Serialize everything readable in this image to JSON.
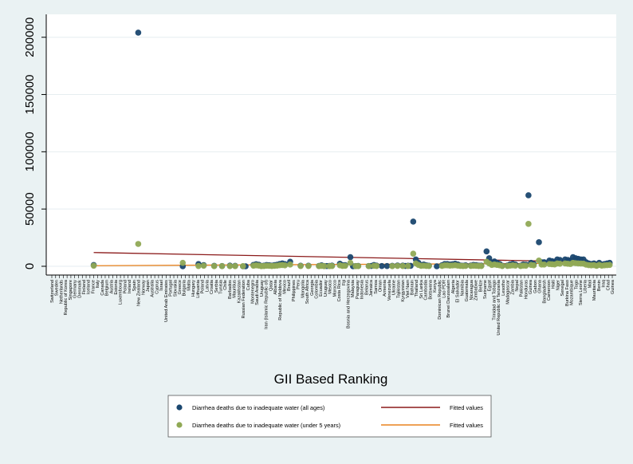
{
  "chart_data": {
    "type": "scatter",
    "title": "",
    "xlabel": "GII Based Ranking",
    "ylabel": "",
    "ylim": [
      0,
      220000
    ],
    "yticks": [
      0,
      50000,
      100000,
      150000,
      200000
    ],
    "ytick_labels": [
      "0",
      "50000",
      "100000",
      "150000",
      "200000"
    ],
    "grid": "horizontal",
    "legend_position": "bottom",
    "n_positions": 148,
    "countries": [
      "Switzerland",
      "Sweden",
      "Netherlands",
      "Republic of Korea",
      "Singapore",
      "Germany",
      "Denmark",
      "Finland",
      "Iceland",
      "France",
      "Italy",
      "Canada",
      "Belgium",
      "Austria",
      "Estonia",
      "Luxembourg",
      "Poland",
      "Ireland",
      "Spain",
      "New Zealand",
      "Norway",
      "Japan",
      "Australia",
      "Cyprus",
      "Israel",
      "United Arab Emirates",
      "Portugal",
      "Slovakia",
      "Greece",
      "Bulgaria",
      "Malta",
      "Hungary",
      "Lithuania",
      "Poland",
      "Latvia",
      "Croatia",
      "Serbia",
      "Tunisia",
      "Chile",
      "Barbados",
      "Mauritius",
      "Kazakhstan",
      "Russian Federation",
      "Cuba",
      "Montenegro",
      "Saudi Arabia",
      "Uruguay",
      "Iran (Islamic Republic of)",
      "Qatar",
      "Albania",
      "Republic of Moldova",
      "Mexico",
      "Brazil",
      "Philippines",
      "Peru",
      "Mongolia",
      "South Africa",
      "Georgia",
      "Colombia",
      "Ecuador",
      "Uruguay",
      "Mexico",
      "Morocco",
      "Costa Rica",
      "Fiji",
      "Bosnia and Herzegovina",
      "Malaysia",
      "Paraguay",
      "Indonesia",
      "Belarus",
      "Jamaica",
      "Samoa",
      "Oman",
      "Armenia",
      "Venezuela",
      "Ukraine",
      "Tajikistan",
      "Kyrgyzstan",
      "Viet Nam",
      "Bahrain",
      "Thailand",
      "Sri Lanka",
      "Cambodia",
      "Botswana",
      "Kenya",
      "Dominican Republic",
      "Lao PDR",
      "Brunei Darussalam",
      "Algeria",
      "El Salvador",
      "Namibia",
      "Guatemala",
      "Nicaragua",
      "Zimbabwe",
      "Belize",
      "Suriname",
      "Egypt",
      "Trinidad and Tobago",
      "United Republic of Tanzania",
      "Lesotho",
      "Madagascar",
      "Zambia",
      "Nepal",
      "Pakistan",
      "Honduras",
      "Guinea",
      "Gabon",
      "Ghana",
      "Bangladesh",
      "Cameroon",
      "Haiti",
      "Niger",
      "Senegal",
      "Burkina Faso",
      "Mozambique",
      "Togo",
      "Sierra Leone",
      "Liberia",
      "Mali",
      "Mauritania",
      "Benin",
      "Iraq",
      "Chad",
      "Guinea"
    ],
    "series": [
      {
        "name": "Diarrhea deaths due to inadequate water (all ages)",
        "color": "#1a476f",
        "points": [
          [
            17,
            1100
          ],
          [
            51,
            0
          ],
          [
            57,
            2000
          ],
          [
            59,
            1000
          ],
          [
            63,
            400
          ],
          [
            66,
            200
          ],
          [
            69,
            600
          ],
          [
            71,
            400
          ],
          [
            74,
            0
          ],
          [
            75,
            0
          ],
          [
            78,
            1200
          ],
          [
            79,
            1800
          ],
          [
            80,
            1400
          ],
          [
            81,
            300
          ],
          [
            82,
            600
          ],
          [
            83,
            1100
          ],
          [
            84,
            900
          ],
          [
            85,
            600
          ],
          [
            86,
            1000
          ],
          [
            87,
            1400
          ],
          [
            88,
            2000
          ],
          [
            89,
            2500
          ],
          [
            90,
            1900
          ],
          [
            92,
            4000
          ],
          [
            96,
            500
          ],
          [
            99,
            500
          ],
          [
            103,
            300
          ],
          [
            104,
            800
          ],
          [
            105,
            200
          ],
          [
            106,
            200
          ],
          [
            107,
            300
          ],
          [
            108,
            600
          ],
          [
            111,
            2200
          ],
          [
            112,
            900
          ],
          [
            113,
            1000
          ],
          [
            115,
            8000
          ],
          [
            116,
            0
          ],
          [
            117,
            200
          ],
          [
            118,
            300
          ],
          [
            122,
            200
          ],
          [
            123,
            300
          ],
          [
            124,
            1100
          ],
          [
            125,
            600
          ],
          [
            127,
            200
          ],
          [
            129,
            200
          ],
          [
            131,
            400
          ],
          [
            133,
            700
          ],
          [
            135,
            600
          ],
          [
            136,
            300
          ],
          [
            137,
            500
          ],
          [
            138,
            400
          ],
          [
            139,
            39000
          ],
          [
            140,
            6000
          ],
          [
            141,
            3000
          ],
          [
            142,
            1000
          ],
          [
            143,
            1500
          ],
          [
            144,
            800
          ],
          [
            145,
            500
          ],
          [
            148,
            0
          ],
          [
            150,
            900
          ],
          [
            151,
            2000
          ],
          [
            152,
            2000
          ],
          [
            153,
            1500
          ],
          [
            154,
            1800
          ],
          [
            155,
            2200
          ],
          [
            156,
            1600
          ],
          [
            157,
            700
          ],
          [
            158,
            500
          ],
          [
            159,
            800
          ],
          [
            161,
            700
          ],
          [
            162,
            1200
          ],
          [
            163,
            1000
          ],
          [
            164,
            600
          ],
          [
            165,
            600
          ],
          [
            167,
            13000
          ],
          [
            168,
            7000
          ],
          [
            169,
            3000
          ],
          [
            170,
            4200
          ],
          [
            171,
            3000
          ],
          [
            172,
            2000
          ],
          [
            173,
            500
          ],
          [
            175,
            700
          ],
          [
            176,
            1600
          ],
          [
            177,
            2100
          ],
          [
            178,
            1500
          ],
          [
            180,
            500
          ],
          [
            181,
            1500
          ],
          [
            182,
            1400
          ],
          [
            183,
            62000
          ],
          [
            184,
            3000
          ],
          [
            185,
            2000
          ],
          [
            187,
            21000
          ],
          [
            188,
            3500
          ],
          [
            189,
            3500
          ],
          [
            191,
            5000
          ],
          [
            192,
            4500
          ],
          [
            193,
            4000
          ],
          [
            194,
            6000
          ],
          [
            195,
            5500
          ],
          [
            197,
            6000
          ],
          [
            198,
            5500
          ],
          [
            199,
            5000
          ],
          [
            200,
            8000
          ],
          [
            201,
            7000
          ],
          [
            202,
            6500
          ],
          [
            203,
            6000
          ],
          [
            204,
            6000
          ],
          [
            205,
            3500
          ],
          [
            206,
            2500
          ],
          [
            207,
            2000
          ],
          [
            208,
            2500
          ],
          [
            209,
            1000
          ],
          [
            210,
            3000
          ],
          [
            211,
            1500
          ],
          [
            212,
            2000
          ],
          [
            213,
            2500
          ],
          [
            214,
            3000
          ]
        ],
        "outliers": [
          [
            34,
            204000
          ]
        ]
      },
      {
        "name": "Diarrhea deaths due to inadequate water (under 5 years)",
        "color": "#90a955",
        "points": [
          [
            17,
            500
          ],
          [
            51,
            3000
          ],
          [
            57,
            200
          ],
          [
            59,
            500
          ],
          [
            63,
            100
          ],
          [
            66,
            100
          ],
          [
            69,
            100
          ],
          [
            71,
            100
          ],
          [
            74,
            100
          ],
          [
            78,
            500
          ],
          [
            79,
            800
          ],
          [
            80,
            600
          ],
          [
            81,
            100
          ],
          [
            82,
            200
          ],
          [
            83,
            500
          ],
          [
            84,
            400
          ],
          [
            85,
            200
          ],
          [
            86,
            400
          ],
          [
            87,
            600
          ],
          [
            88,
            900
          ],
          [
            89,
            1100
          ],
          [
            90,
            800
          ],
          [
            92,
            1500
          ],
          [
            96,
            200
          ],
          [
            99,
            200
          ],
          [
            103,
            100
          ],
          [
            104,
            300
          ],
          [
            105,
            100
          ],
          [
            107,
            100
          ],
          [
            108,
            200
          ],
          [
            111,
            800
          ],
          [
            112,
            300
          ],
          [
            113,
            400
          ],
          [
            115,
            3000
          ],
          [
            117,
            100
          ],
          [
            118,
            100
          ],
          [
            122,
            100
          ],
          [
            124,
            400
          ],
          [
            125,
            200
          ],
          [
            131,
            100
          ],
          [
            133,
            300
          ],
          [
            135,
            200
          ],
          [
            137,
            200
          ],
          [
            139,
            11000
          ],
          [
            140,
            2500
          ],
          [
            141,
            1200
          ],
          [
            142,
            400
          ],
          [
            143,
            600
          ],
          [
            144,
            300
          ],
          [
            145,
            200
          ],
          [
            150,
            300
          ],
          [
            151,
            800
          ],
          [
            152,
            800
          ],
          [
            153,
            600
          ],
          [
            154,
            700
          ],
          [
            155,
            900
          ],
          [
            156,
            600
          ],
          [
            157,
            300
          ],
          [
            158,
            200
          ],
          [
            159,
            300
          ],
          [
            161,
            300
          ],
          [
            162,
            500
          ],
          [
            163,
            400
          ],
          [
            164,
            200
          ],
          [
            165,
            200
          ],
          [
            167,
            4000
          ],
          [
            168,
            2500
          ],
          [
            169,
            1200
          ],
          [
            170,
            1600
          ],
          [
            171,
            1200
          ],
          [
            172,
            800
          ],
          [
            173,
            200
          ],
          [
            175,
            300
          ],
          [
            176,
            600
          ],
          [
            177,
            800
          ],
          [
            178,
            600
          ],
          [
            180,
            200
          ],
          [
            181,
            600
          ],
          [
            182,
            500
          ],
          [
            183,
            37000
          ],
          [
            184,
            1200
          ],
          [
            185,
            800
          ],
          [
            187,
            5000
          ],
          [
            188,
            1500
          ],
          [
            189,
            1500
          ],
          [
            191,
            2000
          ],
          [
            192,
            1800
          ],
          [
            193,
            1600
          ],
          [
            194,
            2500
          ],
          [
            195,
            2200
          ],
          [
            197,
            2500
          ],
          [
            198,
            2200
          ],
          [
            199,
            2000
          ],
          [
            200,
            3000
          ],
          [
            201,
            2700
          ],
          [
            202,
            2500
          ],
          [
            203,
            2400
          ],
          [
            204,
            2300
          ],
          [
            205,
            1400
          ],
          [
            206,
            1000
          ],
          [
            207,
            800
          ],
          [
            208,
            1000
          ],
          [
            209,
            400
          ],
          [
            210,
            1200
          ],
          [
            211,
            600
          ],
          [
            212,
            800
          ],
          [
            213,
            1000
          ],
          [
            214,
            1200
          ]
        ],
        "outliers": [
          [
            34,
            19500
          ]
        ]
      },
      {
        "name": "Fitted values",
        "color": "#8b1a1a",
        "type": "line",
        "points": [
          [
            17,
            12000
          ],
          [
            214,
            3500
          ]
        ]
      },
      {
        "name": "Fitted values",
        "color": "#e8821e",
        "type": "line",
        "points": [
          [
            17,
            500
          ],
          [
            214,
            2800
          ]
        ]
      }
    ],
    "xlim": [
      1,
      215
    ]
  }
}
